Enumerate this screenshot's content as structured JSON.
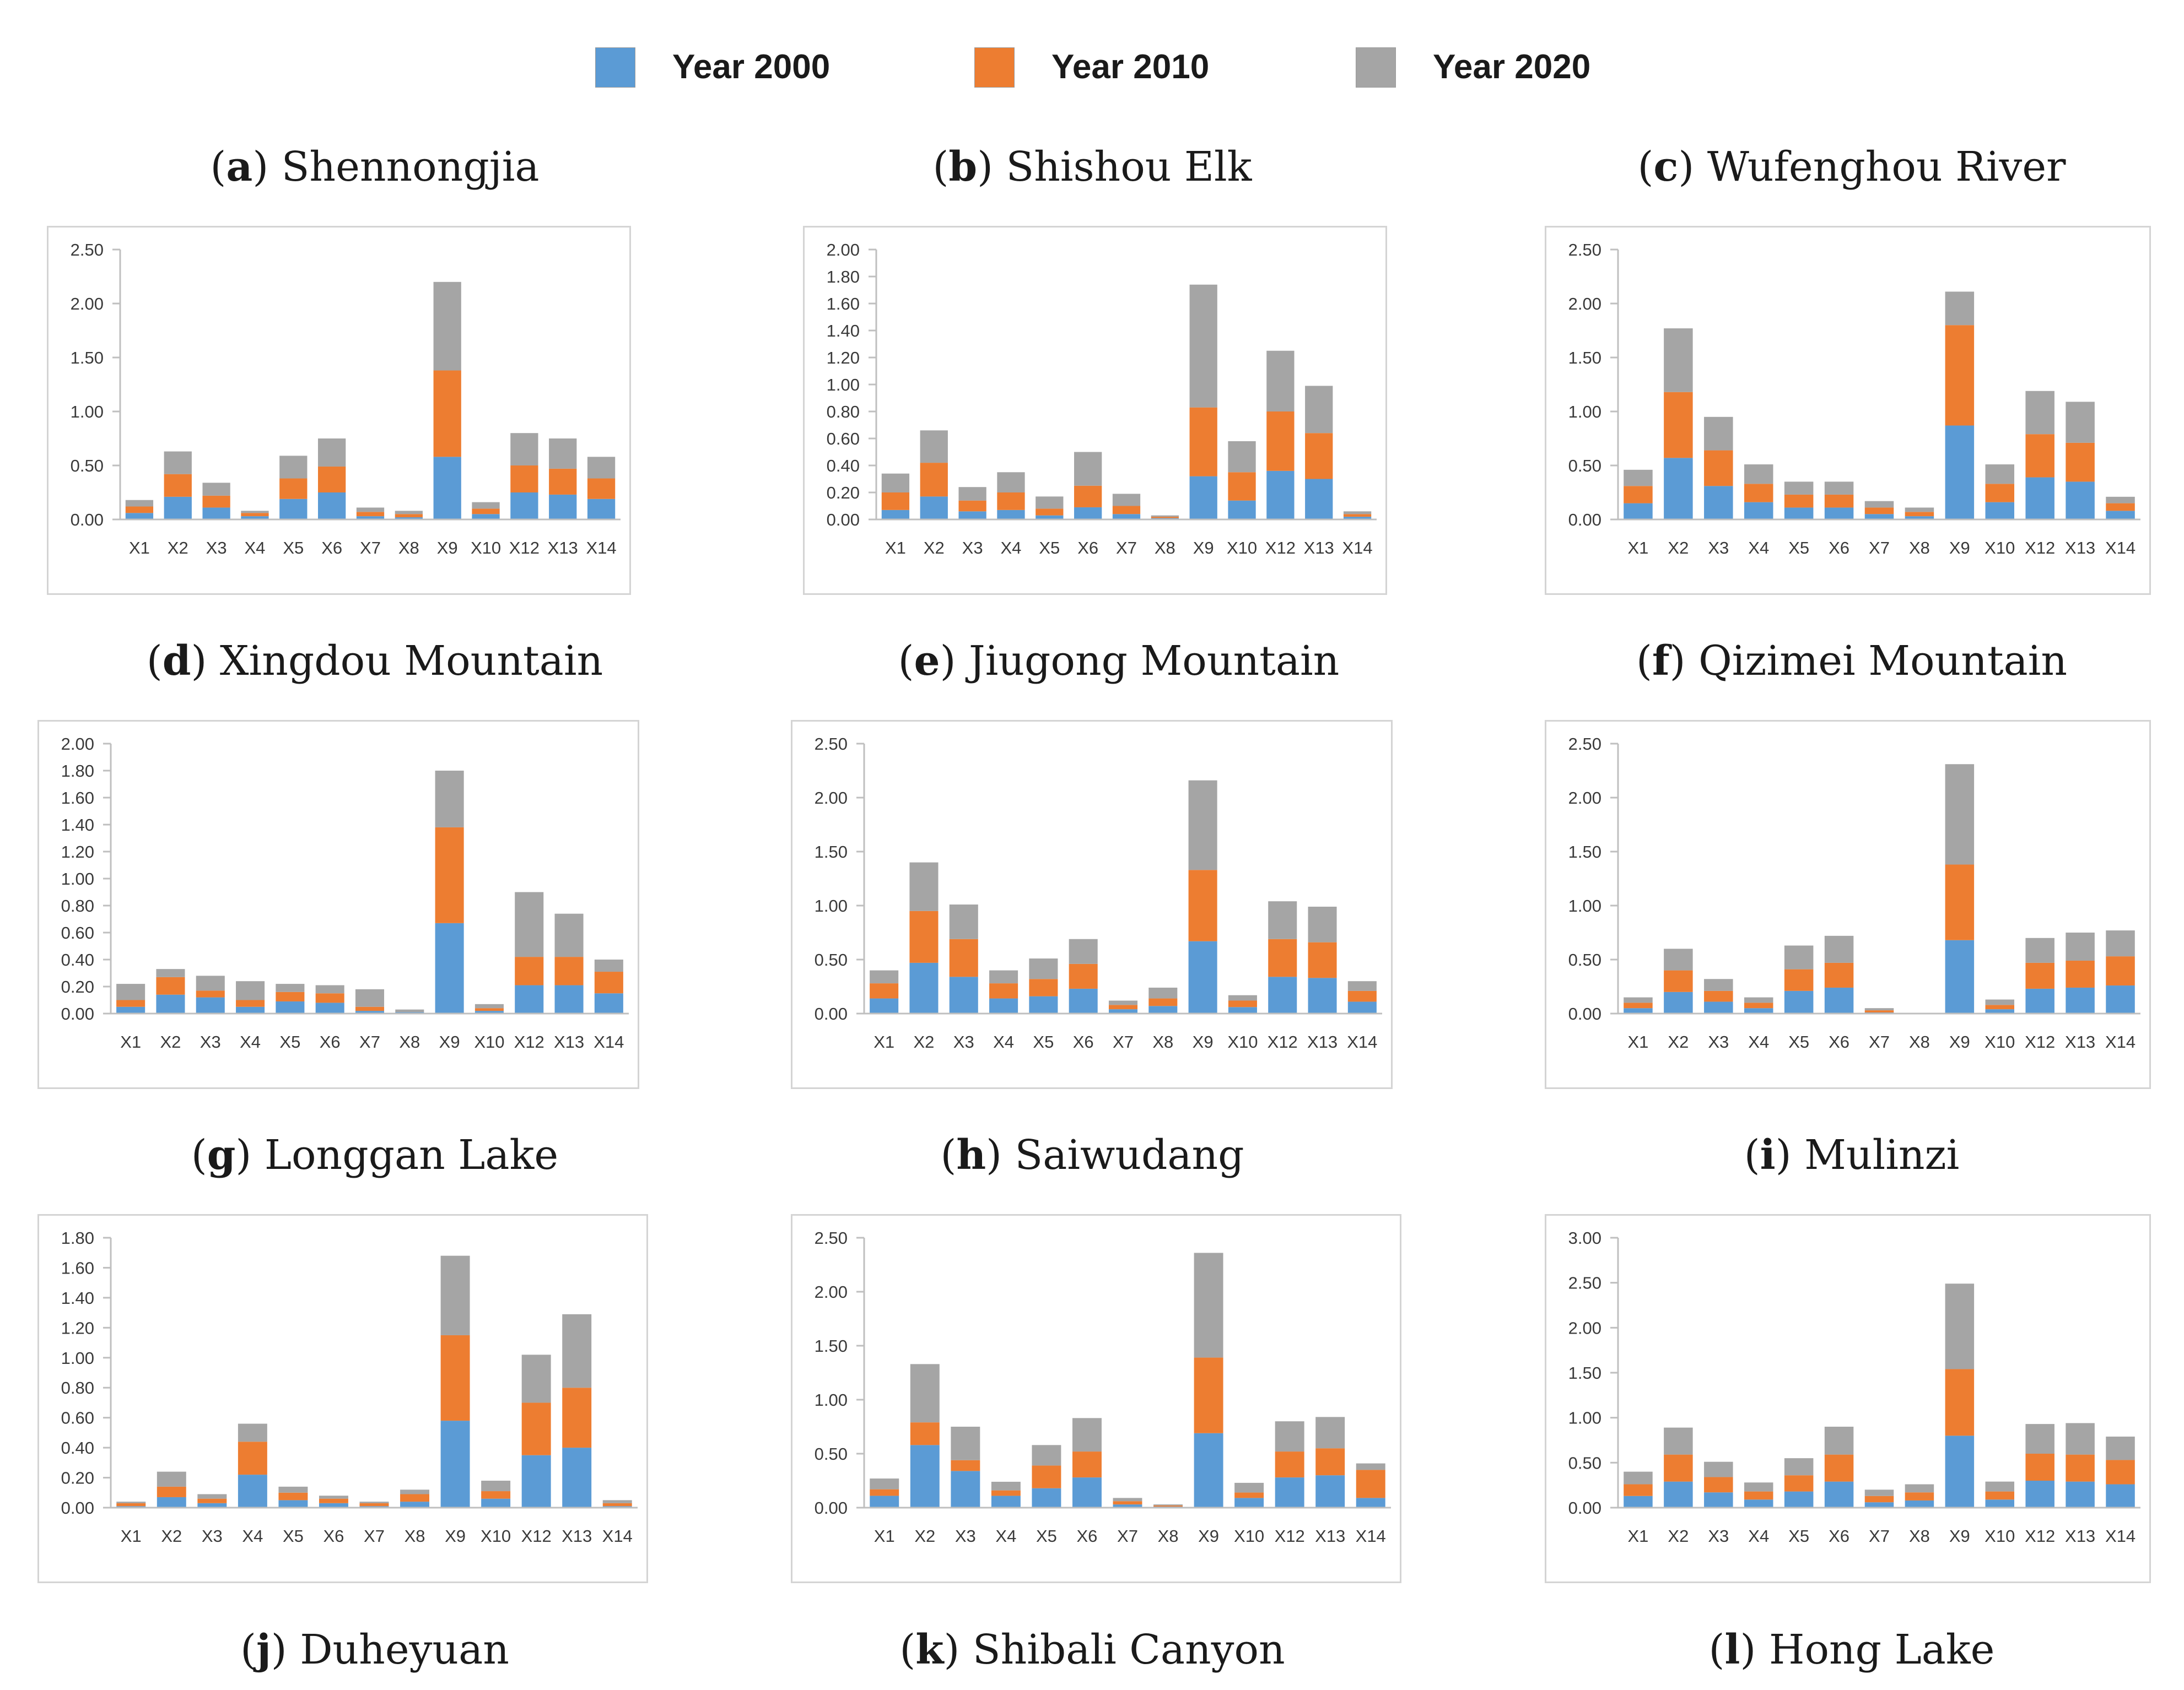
{
  "legend": [
    {
      "label": "Year 2000",
      "color": "#5b9bd5"
    },
    {
      "label": "Year 2010",
      "color": "#ed7d31"
    },
    {
      "label": "Year 2020",
      "color": "#a5a5a5"
    }
  ],
  "captions": [
    {
      "letter": "a",
      "name": "Shennongjia"
    },
    {
      "letter": "b",
      "name": "Shishou Elk"
    },
    {
      "letter": "c",
      "name": "Wufenghou River"
    },
    {
      "letter": "d",
      "name": "Xingdou Mountain"
    },
    {
      "letter": "e",
      "name": "Jiugong Mountain"
    },
    {
      "letter": "f",
      "name": "Qizimei Mountain"
    },
    {
      "letter": "g",
      "name": "Longgan Lake"
    },
    {
      "letter": "h",
      "name": "Saiwudang"
    },
    {
      "letter": "i",
      "name": "Mulinzi"
    },
    {
      "letter": "j",
      "name": "Duheyuan"
    },
    {
      "letter": "k",
      "name": "Shibali Canyon"
    },
    {
      "letter": "l",
      "name": "Hong Lake"
    }
  ],
  "chart_data": [
    {
      "type": "bar",
      "stacked": true,
      "categories": [
        "X1",
        "X2",
        "X3",
        "X4",
        "X5",
        "X6",
        "X7",
        "X8",
        "X9",
        "X10",
        "X12",
        "X13",
        "X14"
      ],
      "ylim": [
        0,
        2.5
      ],
      "yticks": [
        "0.00",
        "0.50",
        "1.00",
        "1.50",
        "2.00",
        "2.50"
      ],
      "series": [
        {
          "name": "Year 2000",
          "values": [
            0.06,
            0.21,
            0.11,
            0.03,
            0.19,
            0.25,
            0.03,
            0.02,
            0.58,
            0.05,
            0.25,
            0.23,
            0.19
          ]
        },
        {
          "name": "Year 2010",
          "values": [
            0.06,
            0.21,
            0.11,
            0.03,
            0.19,
            0.24,
            0.04,
            0.03,
            0.8,
            0.05,
            0.25,
            0.24,
            0.19
          ]
        },
        {
          "name": "Year 2020",
          "values": [
            0.06,
            0.21,
            0.12,
            0.02,
            0.21,
            0.26,
            0.04,
            0.03,
            0.82,
            0.06,
            0.3,
            0.28,
            0.2
          ]
        }
      ]
    },
    {
      "type": "bar",
      "stacked": true,
      "categories": [
        "X1",
        "X2",
        "X3",
        "X4",
        "X5",
        "X6",
        "X7",
        "X8",
        "X9",
        "X10",
        "X12",
        "X13",
        "X14"
      ],
      "ylim": [
        0,
        2.0
      ],
      "yticks": [
        "0.00",
        "0.20",
        "0.40",
        "0.60",
        "0.80",
        "1.00",
        "1.20",
        "1.40",
        "1.60",
        "1.80",
        "2.00"
      ],
      "series": [
        {
          "name": "Year 2000",
          "values": [
            0.07,
            0.17,
            0.06,
            0.07,
            0.03,
            0.09,
            0.04,
            0.01,
            0.32,
            0.14,
            0.36,
            0.3,
            0.02
          ]
        },
        {
          "name": "Year 2010",
          "values": [
            0.13,
            0.25,
            0.08,
            0.13,
            0.05,
            0.16,
            0.06,
            0.01,
            0.51,
            0.21,
            0.44,
            0.34,
            0.02
          ]
        },
        {
          "name": "Year 2020",
          "values": [
            0.14,
            0.24,
            0.1,
            0.15,
            0.09,
            0.25,
            0.09,
            0.01,
            0.91,
            0.23,
            0.45,
            0.35,
            0.02
          ]
        }
      ]
    },
    {
      "type": "bar",
      "stacked": true,
      "categories": [
        "X1",
        "X2",
        "X3",
        "X4",
        "X5",
        "X6",
        "X7",
        "X8",
        "X9",
        "X10",
        "X12",
        "X13",
        "X14"
      ],
      "ylim": [
        0,
        2.5
      ],
      "yticks": [
        "0.00",
        "0.50",
        "1.00",
        "1.50",
        "2.00",
        "2.50"
      ],
      "series": [
        {
          "name": "Year 2000",
          "values": [
            0.15,
            0.57,
            0.31,
            0.16,
            0.11,
            0.11,
            0.05,
            0.03,
            0.87,
            0.16,
            0.39,
            0.35,
            0.08
          ]
        },
        {
          "name": "Year 2010",
          "values": [
            0.16,
            0.61,
            0.33,
            0.17,
            0.12,
            0.12,
            0.06,
            0.04,
            0.93,
            0.17,
            0.4,
            0.36,
            0.07
          ]
        },
        {
          "name": "Year 2020",
          "values": [
            0.15,
            0.59,
            0.31,
            0.18,
            0.12,
            0.12,
            0.06,
            0.04,
            0.31,
            0.18,
            0.4,
            0.38,
            0.06
          ]
        }
      ]
    },
    {
      "type": "bar",
      "stacked": true,
      "categories": [
        "X1",
        "X2",
        "X3",
        "X4",
        "X5",
        "X6",
        "X7",
        "X8",
        "X9",
        "X10",
        "X12",
        "X13",
        "X14"
      ],
      "ylim": [
        0,
        2.0
      ],
      "yticks": [
        "0.00",
        "0.20",
        "0.40",
        "0.60",
        "0.80",
        "1.00",
        "1.20",
        "1.40",
        "1.60",
        "1.80",
        "2.00"
      ],
      "series": [
        {
          "name": "Year 2000",
          "values": [
            0.05,
            0.14,
            0.12,
            0.05,
            0.09,
            0.08,
            0.02,
            0.01,
            0.67,
            0.02,
            0.21,
            0.21,
            0.15
          ]
        },
        {
          "name": "Year 2010",
          "values": [
            0.05,
            0.13,
            0.05,
            0.05,
            0.07,
            0.07,
            0.03,
            0.0,
            0.71,
            0.02,
            0.21,
            0.21,
            0.16
          ]
        },
        {
          "name": "Year 2020",
          "values": [
            0.12,
            0.06,
            0.11,
            0.14,
            0.06,
            0.06,
            0.13,
            0.02,
            0.42,
            0.03,
            0.48,
            0.32,
            0.09
          ]
        }
      ]
    },
    {
      "type": "bar",
      "stacked": true,
      "categories": [
        "X1",
        "X2",
        "X3",
        "X4",
        "X5",
        "X6",
        "X7",
        "X8",
        "X9",
        "X10",
        "X12",
        "X13",
        "X14"
      ],
      "ylim": [
        0,
        2.5
      ],
      "yticks": [
        "0.00",
        "0.50",
        "1.00",
        "1.50",
        "2.00",
        "2.50"
      ],
      "series": [
        {
          "name": "Year 2000",
          "values": [
            0.14,
            0.47,
            0.34,
            0.14,
            0.16,
            0.23,
            0.04,
            0.07,
            0.67,
            0.06,
            0.34,
            0.33,
            0.11
          ]
        },
        {
          "name": "Year 2010",
          "values": [
            0.14,
            0.48,
            0.35,
            0.14,
            0.16,
            0.23,
            0.04,
            0.07,
            0.66,
            0.06,
            0.35,
            0.33,
            0.1
          ]
        },
        {
          "name": "Year 2020",
          "values": [
            0.12,
            0.45,
            0.32,
            0.12,
            0.19,
            0.23,
            0.04,
            0.1,
            0.83,
            0.05,
            0.35,
            0.33,
            0.09
          ]
        }
      ]
    },
    {
      "type": "bar",
      "stacked": true,
      "categories": [
        "X1",
        "X2",
        "X3",
        "X4",
        "X5",
        "X6",
        "X7",
        "X8",
        "X9",
        "X10",
        "X12",
        "X13",
        "X14"
      ],
      "ylim": [
        0,
        2.5
      ],
      "yticks": [
        "0.00",
        "0.50",
        "1.00",
        "1.50",
        "2.00",
        "2.50"
      ],
      "series": [
        {
          "name": "Year 2000",
          "values": [
            0.05,
            0.2,
            0.11,
            0.05,
            0.21,
            0.24,
            0.01,
            0.0,
            0.68,
            0.04,
            0.23,
            0.24,
            0.26
          ]
        },
        {
          "name": "Year 2010",
          "values": [
            0.05,
            0.2,
            0.1,
            0.05,
            0.2,
            0.23,
            0.02,
            0.0,
            0.7,
            0.04,
            0.24,
            0.25,
            0.27
          ]
        },
        {
          "name": "Year 2020",
          "values": [
            0.05,
            0.2,
            0.11,
            0.05,
            0.22,
            0.25,
            0.02,
            0.0,
            0.93,
            0.05,
            0.23,
            0.26,
            0.24
          ]
        }
      ]
    },
    {
      "type": "bar",
      "stacked": true,
      "categories": [
        "X1",
        "X2",
        "X3",
        "X4",
        "X5",
        "X6",
        "X7",
        "X8",
        "X9",
        "X10",
        "X12",
        "X13",
        "X14"
      ],
      "ylim": [
        0,
        1.8
      ],
      "yticks": [
        "0.00",
        "0.20",
        "0.40",
        "0.60",
        "0.80",
        "1.00",
        "1.20",
        "1.40",
        "1.60",
        "1.80"
      ],
      "series": [
        {
          "name": "Year 2000",
          "values": [
            0.01,
            0.07,
            0.03,
            0.22,
            0.05,
            0.03,
            0.01,
            0.04,
            0.58,
            0.06,
            0.35,
            0.4,
            0.01
          ]
        },
        {
          "name": "Year 2010",
          "values": [
            0.02,
            0.07,
            0.03,
            0.22,
            0.05,
            0.03,
            0.02,
            0.05,
            0.57,
            0.05,
            0.35,
            0.4,
            0.02
          ]
        },
        {
          "name": "Year 2020",
          "values": [
            0.01,
            0.1,
            0.03,
            0.12,
            0.04,
            0.02,
            0.01,
            0.03,
            0.53,
            0.07,
            0.32,
            0.49,
            0.02
          ]
        }
      ]
    },
    {
      "type": "bar",
      "stacked": true,
      "categories": [
        "X1",
        "X2",
        "X3",
        "X4",
        "X5",
        "X6",
        "X7",
        "X8",
        "X9",
        "X10",
        "X12",
        "X13",
        "X14"
      ],
      "ylim": [
        0,
        2.5
      ],
      "yticks": [
        "0.00",
        "0.50",
        "1.00",
        "1.50",
        "2.00",
        "2.50"
      ],
      "series": [
        {
          "name": "Year 2000",
          "values": [
            0.11,
            0.58,
            0.34,
            0.11,
            0.18,
            0.28,
            0.03,
            0.01,
            0.69,
            0.09,
            0.28,
            0.3,
            0.09
          ]
        },
        {
          "name": "Year 2010",
          "values": [
            0.06,
            0.21,
            0.1,
            0.05,
            0.21,
            0.24,
            0.03,
            0.01,
            0.7,
            0.05,
            0.24,
            0.25,
            0.26
          ]
        },
        {
          "name": "Year 2020",
          "values": [
            0.1,
            0.54,
            0.31,
            0.08,
            0.19,
            0.31,
            0.03,
            0.01,
            0.97,
            0.09,
            0.28,
            0.29,
            0.06
          ]
        }
      ]
    },
    {
      "type": "bar",
      "stacked": true,
      "categories": [
        "X1",
        "X2",
        "X3",
        "X4",
        "X5",
        "X6",
        "X7",
        "X8",
        "X9",
        "X10",
        "X12",
        "X13",
        "X14"
      ],
      "ylim": [
        0,
        3.0
      ],
      "yticks": [
        "0.00",
        "0.50",
        "1.00",
        "1.50",
        "2.00",
        "2.50",
        "3.00"
      ],
      "series": [
        {
          "name": "Year 2000",
          "values": [
            0.13,
            0.29,
            0.17,
            0.09,
            0.18,
            0.29,
            0.06,
            0.08,
            0.8,
            0.09,
            0.3,
            0.29,
            0.26
          ]
        },
        {
          "name": "Year 2010",
          "values": [
            0.13,
            0.3,
            0.17,
            0.09,
            0.18,
            0.3,
            0.07,
            0.09,
            0.74,
            0.09,
            0.3,
            0.3,
            0.27
          ]
        },
        {
          "name": "Year 2020",
          "values": [
            0.14,
            0.3,
            0.17,
            0.1,
            0.19,
            0.31,
            0.07,
            0.09,
            0.95,
            0.11,
            0.33,
            0.35,
            0.26
          ]
        }
      ]
    }
  ]
}
